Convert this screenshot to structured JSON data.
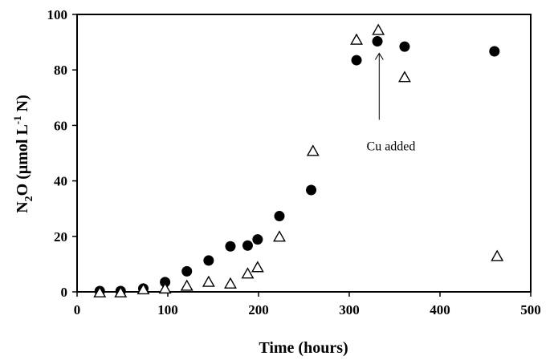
{
  "chart_data": {
    "type": "scatter",
    "title": "",
    "xlabel": "Time (hours)",
    "ylabel": {
      "prefix": "N",
      "sub": "2",
      "mid": "O (μmol L",
      "sup": "-1",
      "suffix": " N)"
    },
    "xlim": [
      0,
      500
    ],
    "ylim": [
      0,
      100
    ],
    "xticks": [
      0,
      100,
      200,
      300,
      400,
      500
    ],
    "yticks": [
      0,
      20,
      40,
      60,
      80,
      100
    ],
    "grid": false,
    "legend": "none",
    "series": [
      {
        "marker": "filled-circle",
        "color": "#000000",
        "points": [
          [
            25,
            0.3
          ],
          [
            48,
            0.3
          ],
          [
            73,
            1.2
          ],
          [
            97,
            3.5
          ],
          [
            121,
            7.4
          ],
          [
            145,
            11.3
          ],
          [
            169,
            16.4
          ],
          [
            188,
            16.7
          ],
          [
            199,
            18.9
          ],
          [
            223,
            27.3
          ],
          [
            258,
            36.7
          ],
          [
            308,
            83.5
          ],
          [
            331,
            90.3
          ],
          [
            361,
            88.4
          ],
          [
            460,
            86.7
          ]
        ]
      },
      {
        "marker": "open-triangle",
        "color": "#000000",
        "points": [
          [
            25,
            -0.5
          ],
          [
            48,
            -0.5
          ],
          [
            73,
            0.6
          ],
          [
            97,
            0.9
          ],
          [
            121,
            1.9
          ],
          [
            145,
            3.3
          ],
          [
            169,
            2.7
          ],
          [
            188,
            6.3
          ],
          [
            199,
            8.6
          ],
          [
            223,
            19.6
          ],
          [
            260,
            50.5
          ],
          [
            308,
            90.6
          ],
          [
            332,
            94.1
          ],
          [
            361,
            77.1
          ],
          [
            463,
            12.6
          ]
        ]
      }
    ],
    "annotations": [
      {
        "text": "Cu added",
        "arrow_from": [
          333,
          62
        ],
        "arrow_to": [
          333,
          86
        ],
        "text_at": [
          346,
          51
        ]
      }
    ]
  }
}
